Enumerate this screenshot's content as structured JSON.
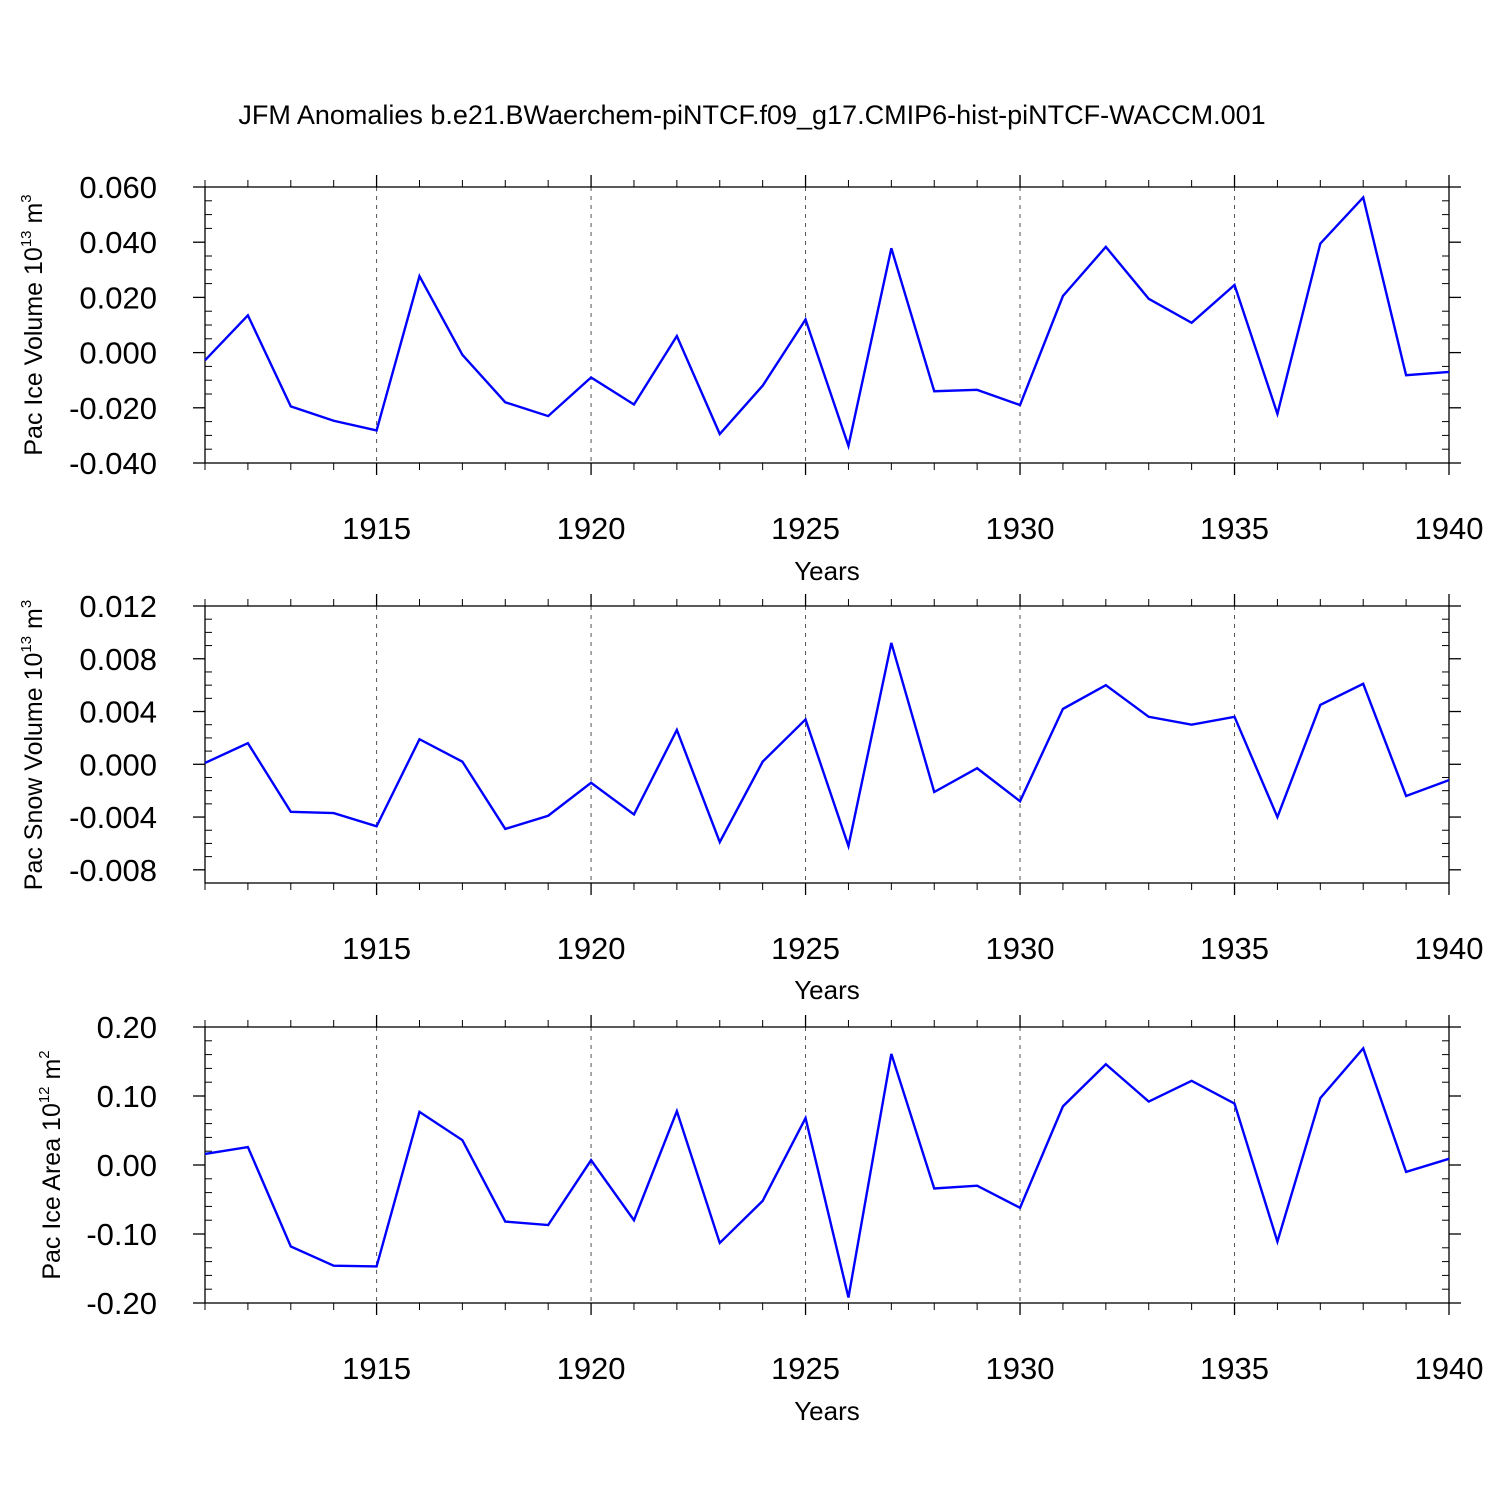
{
  "title": "JFM Anomalies b.e21.BWaerchem-piNTCF.f09_g17.CMIP6-hist-piNTCF-WACCM.001",
  "line_color": "#0000ff",
  "chart_data": [
    {
      "type": "line",
      "ylabel": {
        "prefix": "Pac Ice Volume 10",
        "exp1": "13",
        "mid": " m",
        "exp2": "3"
      },
      "xlabel": "Years",
      "xlim": [
        1911,
        1940
      ],
      "xticks": [
        1915,
        1920,
        1925,
        1930,
        1935,
        1940
      ],
      "xtick_labels": [
        "1915",
        "1920",
        "1925",
        "1930",
        "1935",
        "1940"
      ],
      "ylim": [
        -0.04,
        0.06
      ],
      "yticks": [
        -0.04,
        -0.02,
        0.0,
        0.02,
        0.04,
        0.06
      ],
      "ytick_labels": [
        "-0.040",
        "-0.020",
        "0.000",
        "0.020",
        "0.040",
        "0.060"
      ],
      "yminor_step": 0.005,
      "x": [
        1911,
        1912,
        1913,
        1914,
        1915,
        1916,
        1917,
        1918,
        1919,
        1920,
        1921,
        1922,
        1923,
        1924,
        1925,
        1926,
        1927,
        1928,
        1929,
        1930,
        1931,
        1932,
        1933,
        1934,
        1935,
        1936,
        1937,
        1938,
        1939,
        1940
      ],
      "values": [
        -0.0028,
        0.0135,
        -0.0195,
        -0.0247,
        -0.0282,
        0.0277,
        -0.0008,
        -0.018,
        -0.023,
        -0.009,
        -0.0188,
        0.006,
        -0.0295,
        -0.012,
        0.012,
        -0.0338,
        0.0378,
        -0.014,
        -0.0135,
        -0.019,
        0.0205,
        0.0383,
        0.0195,
        0.0108,
        0.0245,
        -0.0222,
        0.0395,
        0.0562,
        -0.0082,
        -0.007
      ]
    },
    {
      "type": "line",
      "ylabel": {
        "prefix": "Pac Snow Volume 10",
        "exp1": "13",
        "mid": " m",
        "exp2": "3"
      },
      "xlabel": "Years",
      "xlim": [
        1911,
        1940
      ],
      "xticks": [
        1915,
        1920,
        1925,
        1930,
        1935,
        1940
      ],
      "xtick_labels": [
        "1915",
        "1920",
        "1925",
        "1930",
        "1935",
        "1940"
      ],
      "ylim": [
        -0.009,
        0.012
      ],
      "yticks": [
        -0.008,
        -0.004,
        0.0,
        0.004,
        0.008,
        0.012
      ],
      "ytick_labels": [
        "-0.008",
        "-0.004",
        "0.000",
        "0.004",
        "0.008",
        "0.012"
      ],
      "yminor_step": 0.001,
      "x": [
        1911,
        1912,
        1913,
        1914,
        1915,
        1916,
        1917,
        1918,
        1919,
        1920,
        1921,
        1922,
        1923,
        1924,
        1925,
        1926,
        1927,
        1928,
        1929,
        1930,
        1931,
        1932,
        1933,
        1934,
        1935,
        1936,
        1937,
        1938,
        1939,
        1940
      ],
      "values": [
        0.0001,
        0.0016,
        -0.0036,
        -0.0037,
        -0.0047,
        0.0019,
        0.0002,
        -0.0049,
        -0.0039,
        -0.0014,
        -0.0038,
        0.0026,
        -0.0059,
        0.0002,
        0.0034,
        -0.0062,
        0.0092,
        -0.0021,
        -0.0003,
        -0.0028,
        0.0042,
        0.006,
        0.0036,
        0.003,
        0.0036,
        -0.004,
        0.0045,
        0.0061,
        -0.0024,
        -0.0012
      ]
    },
    {
      "type": "line",
      "ylabel": {
        "prefix": "Pac Ice Area 10",
        "exp1": "12",
        "mid": " m",
        "exp2": "2"
      },
      "xlabel": "Years",
      "xlim": [
        1911,
        1940
      ],
      "xticks": [
        1915,
        1920,
        1925,
        1930,
        1935,
        1940
      ],
      "xtick_labels": [
        "1915",
        "1920",
        "1925",
        "1930",
        "1935",
        "1940"
      ],
      "ylim": [
        -0.2,
        0.2
      ],
      "yticks": [
        -0.2,
        -0.1,
        0.0,
        0.1,
        0.2
      ],
      "ytick_labels": [
        "-0.20",
        "-0.10",
        "0.00",
        "0.10",
        "0.20"
      ],
      "yminor_step": 0.02,
      "x": [
        1911,
        1912,
        1913,
        1914,
        1915,
        1916,
        1917,
        1918,
        1919,
        1920,
        1921,
        1922,
        1923,
        1924,
        1925,
        1926,
        1927,
        1928,
        1929,
        1930,
        1931,
        1932,
        1933,
        1934,
        1935,
        1936,
        1937,
        1938,
        1939,
        1940
      ],
      "values": [
        0.016,
        0.026,
        -0.118,
        -0.146,
        -0.147,
        0.077,
        0.036,
        -0.082,
        -0.087,
        0.007,
        -0.08,
        0.078,
        -0.113,
        -0.052,
        0.068,
        -0.192,
        0.161,
        -0.034,
        -0.03,
        -0.062,
        0.085,
        0.146,
        0.092,
        0.122,
        0.089,
        -0.111,
        0.097,
        0.169,
        -0.01,
        0.009
      ]
    }
  ]
}
